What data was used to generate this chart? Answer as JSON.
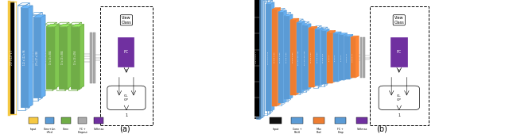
{
  "bg_color": "#ffffff",
  "blue": "#5b9bd5",
  "green": "#70ad47",
  "orange": "#ed7d31",
  "purple": "#7030a0",
  "yellow": "#f5c842",
  "gray": "#aaaaaa",
  "black": "#111111",
  "fig_a": {
    "input_label": "227 x 227 x 3",
    "blue_blocks": [
      {
        "label": "112 x 112 x 96",
        "n_frames": 2
      },
      {
        "label": "27 x 27 x 256",
        "n_frames": 2
      }
    ],
    "green_blocks": [
      {
        "label": "13 x 13 x 384"
      },
      {
        "label": "13 x 13 x 384"
      },
      {
        "label": "13 x 13 x 256"
      }
    ],
    "legend": [
      {
        "text": "Input",
        "color": "#f5c842"
      },
      {
        "text": "Conv+Lin\n+Pool",
        "color": "#5b9bd5"
      },
      {
        "text": "Conv",
        "color": "#70ad47"
      },
      {
        "text": "FC +\nDropout",
        "color": "#aaaaaa"
      },
      {
        "text": "Softmax",
        "color": "#7030a0"
      }
    ]
  },
  "fig_b": {
    "input_label": "256 x 256 x 1",
    "blocks": [
      {
        "color": "blue",
        "tall": 0.8,
        "label": "130 x 130 x 128",
        "n_frames": 3
      },
      {
        "color": "orange",
        "tall": 0.72,
        "label": "65 x 65 x 128",
        "n_frames": 1
      },
      {
        "color": "blue",
        "tall": 0.68,
        "label": "65 x 65 x 256",
        "n_frames": 2
      },
      {
        "color": "blue",
        "tall": 0.62,
        "label": "65 x 65 x 256",
        "n_frames": 2
      },
      {
        "color": "orange",
        "tall": 0.56,
        "label": "30 x 30 x 256",
        "n_frames": 1
      },
      {
        "color": "blue",
        "tall": 0.52,
        "label": "30 x 30 x 54 x 256",
        "n_frames": 2
      },
      {
        "color": "blue",
        "tall": 0.48,
        "label": "30 x 30 x 54 x 256",
        "n_frames": 2
      },
      {
        "color": "orange",
        "tall": 0.44,
        "label": "25 x 25 x 133",
        "n_frames": 1
      },
      {
        "color": "blue",
        "tall": 0.42,
        "label": "25 x 25 x 133",
        "n_frames": 2
      },
      {
        "color": "blue",
        "tall": 0.4,
        "label": "25 x 25 x 61",
        "n_frames": 2
      },
      {
        "color": "orange",
        "tall": 0.38,
        "label": "9 x 6 x 1",
        "n_frames": 1
      },
      {
        "color": "blue",
        "tall": 0.36,
        "label": "9 x 6 x 1",
        "n_frames": 1
      },
      {
        "color": "blue",
        "tall": 0.34,
        "label": "9 x 6 x 1",
        "n_frames": 1
      },
      {
        "color": "blue",
        "tall": 0.32,
        "label": "144 x 1 x 1",
        "n_frames": 1
      },
      {
        "color": "orange",
        "tall": 0.3,
        "label": "144 x 1 x 1",
        "n_frames": 1
      }
    ],
    "legend": [
      {
        "text": "Input",
        "color": "#111111"
      },
      {
        "text": "Conv +\nReLU",
        "color": "#5b9bd5"
      },
      {
        "text": "Max\nPool",
        "color": "#ed7d31"
      },
      {
        "text": "FC +\nDrop",
        "color": "#5b9bd5"
      },
      {
        "text": "Softmax",
        "color": "#7030a0"
      }
    ]
  }
}
